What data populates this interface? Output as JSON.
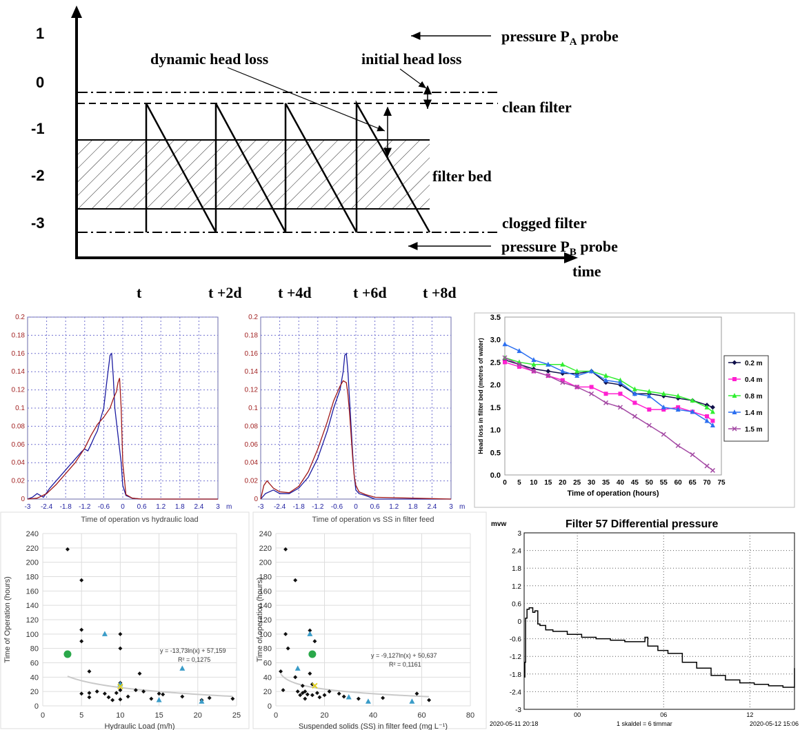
{
  "diagram": {
    "y_ticks": [
      "1",
      "0",
      "-1",
      "-2",
      "-3"
    ],
    "labels": {
      "pa_probe": "pressure P",
      "pa_sub": "A",
      "pa_suffix": " probe",
      "pb_probe": "pressure P",
      "pb_sub": "B",
      "pb_suffix": " probe",
      "dynamic": "dynamic head loss",
      "initial": "initial head loss",
      "clean": "clean filter",
      "bed": "filter bed",
      "clogged": "clogged filter",
      "time": "time"
    },
    "time_labels": [
      "t",
      "t +2d",
      "t +4d",
      "t +6d",
      "t +8d"
    ]
  },
  "chart_data": [
    {
      "id": "profile1",
      "type": "line",
      "x_ticks": [
        "-3",
        "-2.4",
        "-1.8",
        "-1.2",
        "-0.6",
        "0",
        "0.6",
        "1.2",
        "1.8",
        "2.4",
        "3"
      ],
      "x_unit": "m",
      "xlim": [
        -3,
        3
      ],
      "y_ticks": [
        "0",
        "0.02",
        "0.04",
        "0.06",
        "0.08",
        "0.1",
        "0.12",
        "0.14",
        "0.16",
        "0.18",
        "0.2"
      ],
      "ylim": [
        0,
        0.2
      ],
      "grid": true,
      "series": [
        {
          "color": "#1a1aa0",
          "x": [
            -3,
            -2.85,
            -2.7,
            -2.5,
            -2.3,
            -2.1,
            -1.9,
            -1.7,
            -1.5,
            -1.3,
            -1.2,
            -1.1,
            -1.0,
            -0.9,
            -0.8,
            -0.7,
            -0.6,
            -0.5,
            -0.4,
            -0.35,
            -0.3,
            -0.25,
            -0.15,
            -0.05,
            0.0,
            0.1,
            0.3,
            0.6,
            3
          ],
          "y": [
            0,
            0.002,
            0.006,
            0.002,
            0.012,
            0.02,
            0.028,
            0.036,
            0.044,
            0.052,
            0.055,
            0.053,
            0.06,
            0.068,
            0.075,
            0.088,
            0.1,
            0.13,
            0.158,
            0.16,
            0.135,
            0.1,
            0.07,
            0.04,
            0.015,
            0.004,
            0.001,
            0,
            0
          ]
        },
        {
          "color": "#a01818",
          "x": [
            -3,
            -2.7,
            -2.4,
            -2.1,
            -1.8,
            -1.5,
            -1.2,
            -1.0,
            -0.8,
            -0.6,
            -0.4,
            -0.3,
            -0.2,
            -0.15,
            -0.1,
            -0.05,
            0.0,
            0.1,
            0.3,
            0.6,
            3
          ],
          "y": [
            0,
            0.001,
            0.006,
            0.016,
            0.028,
            0.04,
            0.056,
            0.07,
            0.082,
            0.09,
            0.1,
            0.11,
            0.118,
            0.128,
            0.133,
            0.1,
            0.04,
            0.005,
            0.001,
            0,
            0
          ]
        }
      ]
    },
    {
      "id": "profile2",
      "type": "line",
      "x_ticks": [
        "-3",
        "-2.4",
        "-1.8",
        "-1.2",
        "-0.6",
        "0",
        "0.6",
        "1.2",
        "1.8",
        "2.4",
        "3"
      ],
      "x_unit": "m",
      "xlim": [
        -3,
        3
      ],
      "y_ticks": [
        "0",
        "0.02",
        "0.04",
        "0.06",
        "0.08",
        "0.1",
        "0.12",
        "0.14",
        "0.16",
        "0.18",
        "0.2"
      ],
      "ylim": [
        0,
        0.2
      ],
      "grid": true,
      "series": [
        {
          "color": "#1a1aa0",
          "x": [
            -3,
            -2.85,
            -2.6,
            -2.4,
            -2.1,
            -1.8,
            -1.5,
            -1.2,
            -0.9,
            -0.7,
            -0.5,
            -0.4,
            -0.35,
            -0.3,
            -0.25,
            -0.2,
            -0.15,
            -0.1,
            -0.05,
            0.0,
            0.1,
            0.3,
            0.6,
            3
          ],
          "y": [
            0,
            0.006,
            0.01,
            0.006,
            0.006,
            0.012,
            0.024,
            0.045,
            0.075,
            0.1,
            0.12,
            0.14,
            0.158,
            0.16,
            0.14,
            0.11,
            0.08,
            0.05,
            0.025,
            0.01,
            0.006,
            0.004,
            0,
            0
          ]
        },
        {
          "color": "#a01818",
          "x": [
            -3,
            -2.9,
            -2.8,
            -2.6,
            -2.4,
            -2.1,
            -1.8,
            -1.5,
            -1.2,
            -0.9,
            -0.7,
            -0.5,
            -0.4,
            -0.3,
            -0.25,
            -0.2,
            -0.15,
            -0.1,
            -0.05,
            0.0,
            0.1,
            0.3,
            0.6,
            3
          ],
          "y": [
            0,
            0.015,
            0.02,
            0.012,
            0.008,
            0.007,
            0.014,
            0.03,
            0.055,
            0.085,
            0.108,
            0.124,
            0.13,
            0.128,
            0.115,
            0.095,
            0.07,
            0.045,
            0.025,
            0.015,
            0.008,
            0.005,
            0.002,
            0
          ]
        }
      ]
    },
    {
      "id": "headloss",
      "type": "line",
      "ylabel": "Head loss in filter bed (metres of water)",
      "xlabel": "Time of operation (hours)",
      "x_ticks": [
        "0",
        "5",
        "10",
        "15",
        "20",
        "25",
        "30",
        "35",
        "40",
        "45",
        "50",
        "55",
        "60",
        "65",
        "70",
        "75"
      ],
      "xlim": [
        0,
        75
      ],
      "y_ticks": [
        "0.0",
        "0.5",
        "1.0",
        "1.5",
        "2.0",
        "2.5",
        "3.0",
        "3.5"
      ],
      "ylim": [
        0,
        3.5
      ],
      "legend": "right",
      "x": [
        0,
        5,
        10,
        15,
        20,
        25,
        30,
        35,
        40,
        45,
        50,
        55,
        60,
        65,
        70,
        72
      ],
      "series": [
        {
          "name": "0.2 m",
          "color": "#10104a",
          "marker": "diamond",
          "values": [
            2.55,
            2.45,
            2.35,
            2.3,
            2.25,
            2.25,
            2.3,
            2.05,
            2.0,
            1.8,
            1.8,
            1.75,
            1.7,
            1.65,
            1.55,
            1.5
          ]
        },
        {
          "name": "0.4 m",
          "color": "#ff20d0",
          "marker": "square",
          "values": [
            2.5,
            2.4,
            2.3,
            2.2,
            2.1,
            1.95,
            1.95,
            1.8,
            1.8,
            1.6,
            1.45,
            1.45,
            1.5,
            1.4,
            1.3,
            1.2
          ]
        },
        {
          "name": "0.8 m",
          "color": "#30ee30",
          "marker": "triangle",
          "values": [
            2.6,
            2.5,
            2.45,
            2.45,
            2.45,
            2.3,
            2.3,
            2.2,
            2.1,
            1.9,
            1.85,
            1.8,
            1.75,
            1.65,
            1.5,
            1.4
          ]
        },
        {
          "name": "1.4 m",
          "color": "#2b6ff0",
          "marker": "triangle",
          "values": [
            2.9,
            2.75,
            2.55,
            2.45,
            2.3,
            2.2,
            2.3,
            2.1,
            2.05,
            1.8,
            1.75,
            1.5,
            1.45,
            1.4,
            1.2,
            1.1
          ]
        },
        {
          "name": "1.5 m",
          "color": "#a44aa4",
          "marker": "x",
          "values": [
            2.6,
            2.45,
            2.3,
            2.2,
            2.05,
            1.95,
            1.8,
            1.6,
            1.5,
            1.3,
            1.1,
            0.9,
            0.65,
            0.45,
            0.2,
            0.1
          ]
        }
      ]
    },
    {
      "id": "hydraulic",
      "type": "scatter",
      "title": "Time of operation vs hydraulic load",
      "xlabel": "Hydraulic Load (m/h)",
      "ylabel": "Time of Operation (hours)",
      "x_ticks": [
        "0",
        "5",
        "10",
        "15",
        "20",
        "25"
      ],
      "xlim": [
        0,
        25
      ],
      "y_ticks": [
        "0",
        "20",
        "40",
        "60",
        "80",
        "100",
        "120",
        "140",
        "160",
        "180",
        "200",
        "220",
        "240"
      ],
      "ylim": [
        0,
        240
      ],
      "grid": true,
      "equation": "y = -13,73ln(x) + 57,159",
      "r2": "R² = 0,1275",
      "trend": {
        "a": -13.73,
        "b": 57.159,
        "x_from": 3.2,
        "x_to": 24.5
      },
      "points_black": [
        [
          3.2,
          218
        ],
        [
          5,
          175
        ],
        [
          5,
          106
        ],
        [
          5,
          90
        ],
        [
          6,
          48
        ],
        [
          5,
          17
        ],
        [
          6,
          18
        ],
        [
          6,
          12
        ],
        [
          7,
          20
        ],
        [
          8,
          17
        ],
        [
          8.5,
          12
        ],
        [
          9,
          8
        ],
        [
          9.5,
          18
        ],
        [
          10,
          100
        ],
        [
          10,
          80
        ],
        [
          10,
          32
        ],
        [
          10,
          22
        ],
        [
          10,
          9
        ],
        [
          11,
          13
        ],
        [
          12,
          22
        ],
        [
          12.5,
          45
        ],
        [
          13,
          20
        ],
        [
          14,
          10
        ],
        [
          15,
          17
        ],
        [
          15.5,
          16
        ],
        [
          18,
          13
        ],
        [
          20.5,
          8
        ],
        [
          21.5,
          11
        ],
        [
          24.5,
          10
        ]
      ],
      "points_blue": [
        [
          8,
          100
        ],
        [
          10,
          30
        ],
        [
          15,
          8
        ],
        [
          18,
          52
        ],
        [
          20.5,
          6
        ]
      ],
      "points_green": [
        [
          3.2,
          72
        ]
      ],
      "points_yellow": [
        [
          10,
          27
        ]
      ]
    },
    {
      "id": "ss",
      "type": "scatter",
      "title": "Time of operation vs SS in filter feed",
      "xlabel": "Suspended solids (SS) in filter feed (mg L⁻¹)",
      "ylabel": "Time of operation  (hours)",
      "x_ticks": [
        "0",
        "20",
        "40",
        "60",
        "80"
      ],
      "xlim": [
        0,
        80
      ],
      "y_ticks": [
        "0",
        "20",
        "40",
        "60",
        "80",
        "100",
        "120",
        "140",
        "160",
        "180",
        "200",
        "220",
        "240"
      ],
      "ylim": [
        0,
        240
      ],
      "grid": true,
      "equation": "y = -9,127ln(x) + 50,637",
      "r2": "R² = 0,1161",
      "trend": {
        "a": -9.127,
        "b": 50.637,
        "x_from": 2,
        "x_to": 63
      },
      "points_black": [
        [
          2,
          48
        ],
        [
          3,
          22
        ],
        [
          4,
          218
        ],
        [
          4,
          100
        ],
        [
          5,
          80
        ],
        [
          8,
          40
        ],
        [
          8,
          175
        ],
        [
          9,
          20
        ],
        [
          10,
          15
        ],
        [
          11,
          18
        ],
        [
          11,
          28
        ],
        [
          12,
          10
        ],
        [
          12,
          20
        ],
        [
          13,
          16
        ],
        [
          14,
          105
        ],
        [
          14,
          45
        ],
        [
          15,
          30
        ],
        [
          15,
          15
        ],
        [
          16,
          90
        ],
        [
          17,
          18
        ],
        [
          18,
          12
        ],
        [
          20,
          15
        ],
        [
          22,
          20
        ],
        [
          26,
          17
        ],
        [
          28,
          13
        ],
        [
          34,
          10
        ],
        [
          44,
          11
        ],
        [
          58,
          17
        ],
        [
          63,
          8
        ]
      ],
      "points_blue": [
        [
          9,
          52
        ],
        [
          14,
          100
        ],
        [
          30,
          12
        ],
        [
          38,
          6
        ],
        [
          56,
          6
        ]
      ],
      "points_green": [
        [
          15,
          72
        ]
      ],
      "points_yellow": [
        [
          16,
          28
        ]
      ]
    },
    {
      "id": "diffpressure",
      "type": "line",
      "title": "Filter 57 Differential pressure",
      "unit": "mvw",
      "y_ticks": [
        "-3",
        "-2.4",
        "-1.8",
        "-1.2",
        "-0.6",
        "0",
        "0.6",
        "1.2",
        "1.8",
        "2.4",
        "3"
      ],
      "ylim": [
        -3,
        3
      ],
      "x_ticks": [
        "00",
        "06",
        "12"
      ],
      "x_start": "2020-05-11 20:18",
      "x_end": "2020-05-12 15:06",
      "x_note": "1 skaldel = 6 timmar",
      "grid": true,
      "x_hours": [
        0,
        0.05,
        0.1,
        0.2,
        0.35,
        0.6,
        0.75,
        0.95,
        1.1,
        1.5,
        2,
        3,
        4,
        5,
        6,
        7,
        8,
        8.4,
        8.6,
        9,
        9.3,
        10,
        11,
        12,
        13,
        14,
        15,
        16,
        17,
        18,
        18.8
      ],
      "values": [
        -1.9,
        -1.4,
        0.1,
        0.4,
        0.45,
        0.3,
        0.35,
        -0.1,
        -0.15,
        -0.3,
        -0.35,
        -0.45,
        -0.55,
        -0.6,
        -0.65,
        -0.7,
        -0.7,
        -0.55,
        -0.85,
        -0.85,
        -1.0,
        -1.1,
        -1.4,
        -1.6,
        -1.85,
        -2.0,
        -2.1,
        -2.15,
        -2.2,
        -2.25,
        -1.6
      ]
    }
  ]
}
